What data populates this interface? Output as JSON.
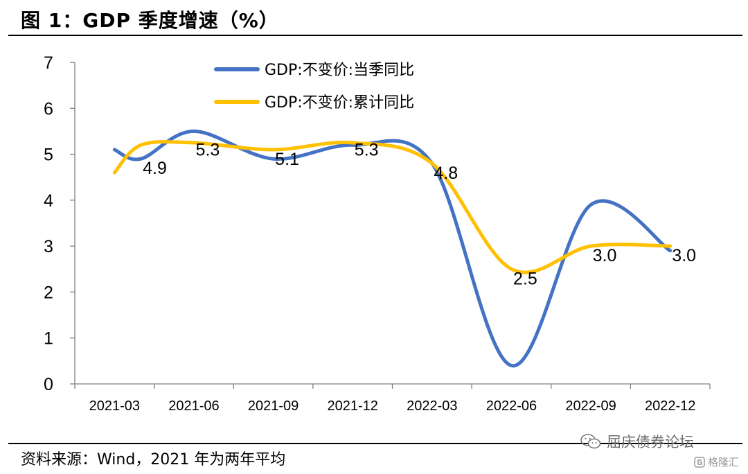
{
  "title": "图 1：GDP 季度增速（%）",
  "source": "资料来源：Wind，2021 年为两年平均",
  "watermark": "屈庆债券论坛",
  "watermark2": "格隆汇",
  "chart_data": {
    "type": "line",
    "categories": [
      "2021-03",
      "2021-06",
      "2021-09",
      "2021-12",
      "2022-03",
      "2022-06",
      "2022-09",
      "2022-12"
    ],
    "ylim": [
      0,
      7
    ],
    "yticks": [
      0,
      1,
      2,
      3,
      4,
      5,
      6,
      7
    ],
    "grid": false,
    "smooth": true,
    "legend_position": "top-center",
    "series": [
      {
        "name": "GDP:不变价:当季同比",
        "color": "#4472C4",
        "x": [
          "2021-03",
          "2021-04",
          "2021-06",
          "2021-09",
          "2021-12",
          "2022-03",
          "2022-06",
          "2022-09",
          "2022-12"
        ],
        "values": [
          5.1,
          4.9,
          5.5,
          4.9,
          5.2,
          4.8,
          0.4,
          3.9,
          2.9
        ]
      },
      {
        "name": "GDP:不变价:累计同比",
        "color": "#FFC000",
        "x": [
          "2021-03",
          "2021-04",
          "2021-06",
          "2021-09",
          "2021-12",
          "2022-03",
          "2022-06",
          "2022-09",
          "2022-12"
        ],
        "values": [
          4.6,
          5.2,
          5.25,
          5.1,
          5.25,
          4.8,
          2.5,
          3.0,
          3.0
        ]
      }
    ],
    "data_labels": [
      {
        "text": "4.9",
        "x": "2021-04",
        "y": 4.9
      },
      {
        "text": "5.3",
        "x": "2021-06",
        "y": 5.3
      },
      {
        "text": "5.1",
        "x": "2021-09",
        "y": 5.1
      },
      {
        "text": "5.3",
        "x": "2021-12",
        "y": 5.3
      },
      {
        "text": "4.8",
        "x": "2022-03",
        "y": 4.8
      },
      {
        "text": "2.5",
        "x": "2022-06",
        "y": 2.5
      },
      {
        "text": "3.0",
        "x": "2022-09",
        "y": 3.0
      },
      {
        "text": "3.0",
        "x": "2022-12",
        "y": 3.0
      }
    ]
  }
}
